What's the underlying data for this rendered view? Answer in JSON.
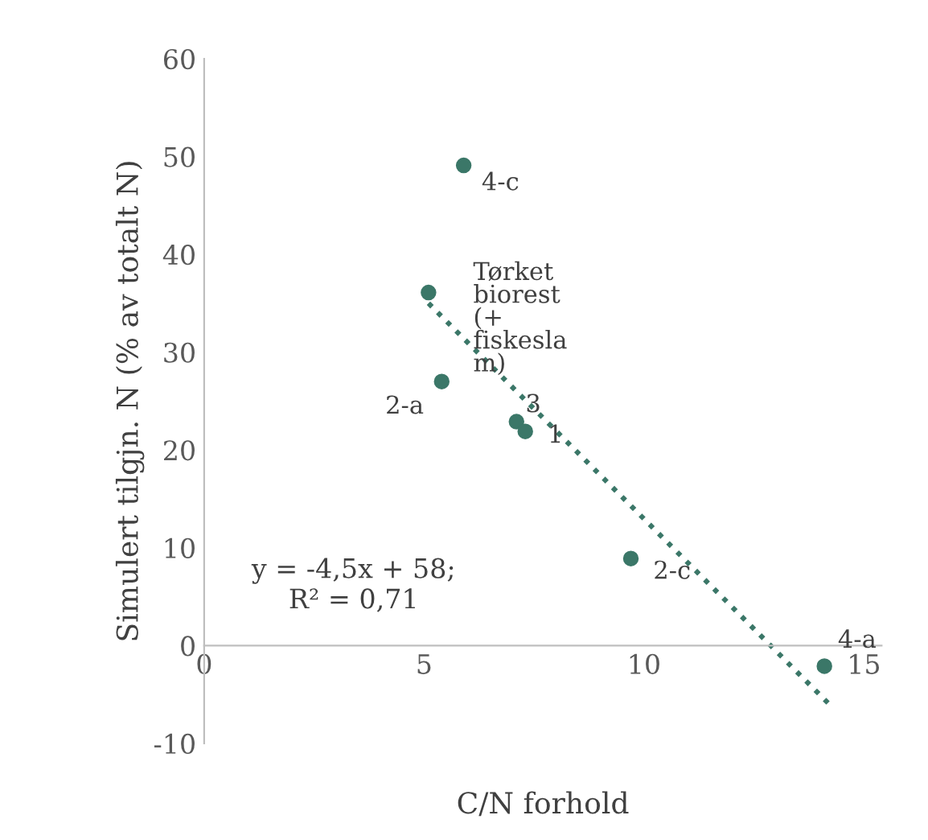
{
  "chart_data": {
    "type": "scatter",
    "xlabel": "C/N forhold",
    "ylabel": "Simulert tilgjn. N (% av totalt N)",
    "xlim": [
      0,
      15.4
    ],
    "ylim": [
      -10,
      60
    ],
    "xticks": [
      0,
      5,
      10,
      15
    ],
    "yticks": [
      -10,
      0,
      10,
      20,
      30,
      40,
      50,
      60
    ],
    "grid": false,
    "series": [
      {
        "marker": "circle",
        "color": "#3b7768",
        "x": [
          5.1,
          5.9,
          5.4,
          7.1,
          7.3,
          9.7,
          14.1
        ],
        "values": [
          36.1,
          49.1,
          27.0,
          22.9,
          21.9,
          8.9,
          -2.1
        ]
      },
      {
        "type": "line",
        "marker": "none",
        "line_style": "dotted",
        "color": "#3b7768",
        "x": [
          5.1,
          14.3
        ],
        "values": [
          35.0,
          -6.4
        ]
      }
    ],
    "annotations": [
      {
        "text": "4-c",
        "x": 5.9,
        "y": 49.1
      },
      {
        "text": "Tørket\nbiorest\n(+\nfiskesla\nm)",
        "x": 5.1,
        "y": 36.1
      },
      {
        "text": "2-a",
        "x": 5.4,
        "y": 27.0
      },
      {
        "text": "3",
        "x": 7.1,
        "y": 22.9
      },
      {
        "text": "1",
        "x": 7.3,
        "y": 21.9
      },
      {
        "text": "2-c",
        "x": 9.7,
        "y": 8.9
      },
      {
        "text": "4-a",
        "x": 14.1,
        "y": -2.1
      },
      "y = -4,5x + 58;\nR² = 0,71"
    ]
  }
}
